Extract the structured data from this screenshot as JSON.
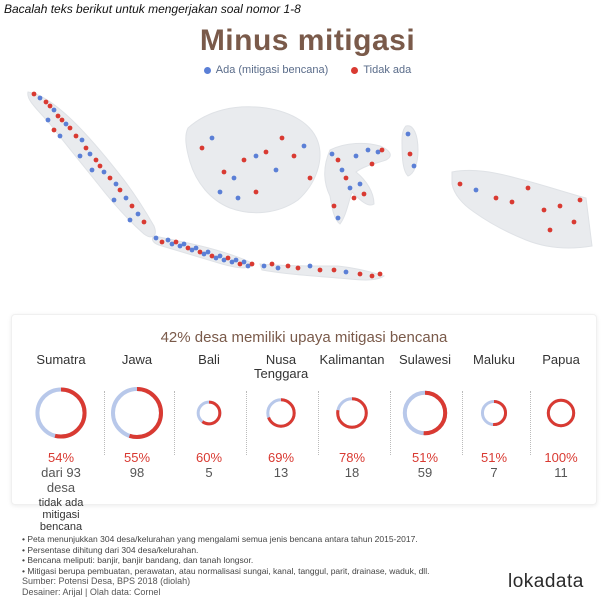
{
  "instruction": "Bacalah teks berikut untuk mengerjakan soal nomor 1-8",
  "title": "Minus mitigasi",
  "legend": {
    "ada": "Ada (mitigasi bencana)",
    "tidak": "Tidak ada"
  },
  "colors": {
    "ada": "#5b7fd6",
    "tidak": "#d93a32",
    "ring_light": "#b8c8ea",
    "land": "#e9ebee"
  },
  "chart_data": {
    "type": "donut",
    "subtitle": "42% desa memiliki upaya mitigasi bencana",
    "regions": [
      {
        "name": "Sumatra",
        "percent": 54,
        "percent_label": "54%",
        "count_label": "dari 93 desa",
        "count": 93,
        "note": "tidak ada mitigasi bencana"
      },
      {
        "name": "Jawa",
        "percent": 55,
        "percent_label": "55%",
        "count_label": "98",
        "count": 98
      },
      {
        "name": "Bali",
        "percent": 60,
        "percent_label": "60%",
        "count_label": "5",
        "count": 5
      },
      {
        "name": "Nusa Tenggara",
        "percent": 69,
        "percent_label": "69%",
        "count_label": "13",
        "count": 13
      },
      {
        "name": "Kalimantan",
        "percent": 78,
        "percent_label": "78%",
        "count_label": "18",
        "count": 18
      },
      {
        "name": "Sulawesi",
        "percent": 51,
        "percent_label": "51%",
        "count_label": "59",
        "count": 59
      },
      {
        "name": "Maluku",
        "percent": 51,
        "percent_label": "51%",
        "count_label": "7",
        "count": 7
      },
      {
        "name": "Papua",
        "percent": 100,
        "percent_label": "100%",
        "count_label": "11",
        "count": 11
      }
    ]
  },
  "footnotes": [
    "Peta menunjukkan 304 desa/kelurahan yang mengalami semua jenis bencana antara tahun 2015-2017.",
    "Persentase dihitung dari 304 desa/kelurahan.",
    "Bencana meliputi: banjir, banjir bandang, dan tanah longsor.",
    "Mitigasi berupa pembuatan, perawatan, atau normalisasi sungai, kanal, tanggul, parit, drainase, waduk, dll."
  ],
  "source": "Sumber: Potensi Desa, BPS 2018 (diolah)",
  "credits": "Desainer: Arijal | Olah data: Cornel",
  "brand": "lokadata"
}
